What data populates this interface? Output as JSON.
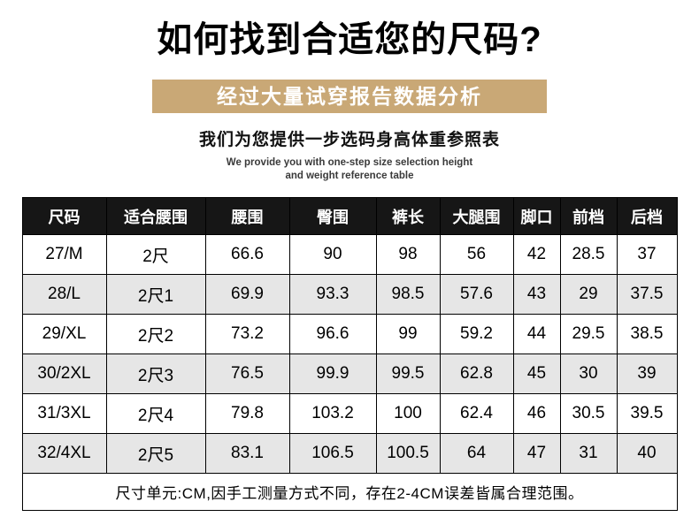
{
  "title": "如何找到合适您的尺码?",
  "banner": "经过大量试穿报告数据分析",
  "subtitle": "我们为您提供一步选码身高体重参照表",
  "caption_en": {
    "line1": "We provide you with one-step size selection height",
    "line2": "and weight reference table"
  },
  "table": {
    "headers": [
      "尺码",
      "适合腰围",
      "腰围",
      "臀围",
      "裤长",
      "大腿围",
      "脚口",
      "前档",
      "后档"
    ],
    "rows": [
      [
        "27/M",
        "2尺",
        "66.6",
        "90",
        "98",
        "56",
        "42",
        "28.5",
        "37"
      ],
      [
        "28/L",
        "2尺1",
        "69.9",
        "93.3",
        "98.5",
        "57.6",
        "43",
        "29",
        "37.5"
      ],
      [
        "29/XL",
        "2尺2",
        "73.2",
        "96.6",
        "99",
        "59.2",
        "44",
        "29.5",
        "38.5"
      ],
      [
        "30/2XL",
        "2尺3",
        "76.5",
        "99.9",
        "99.5",
        "62.8",
        "45",
        "30",
        "39"
      ],
      [
        "31/3XL",
        "2尺4",
        "79.8",
        "103.2",
        "100",
        "62.4",
        "46",
        "30.5",
        "39.5"
      ],
      [
        "32/4XL",
        "2尺5",
        "83.1",
        "106.5",
        "100.5",
        "64",
        "47",
        "31",
        "40"
      ]
    ],
    "footnote": "尺寸单元:CM,因手工测量方式不同，存在2-4CM误差皆属合理范围。"
  },
  "colors": {
    "banner_bg": "#c9a876",
    "header_bg": "#161616",
    "row_alt_bg": "#e6e6e6",
    "border": "#000000"
  }
}
